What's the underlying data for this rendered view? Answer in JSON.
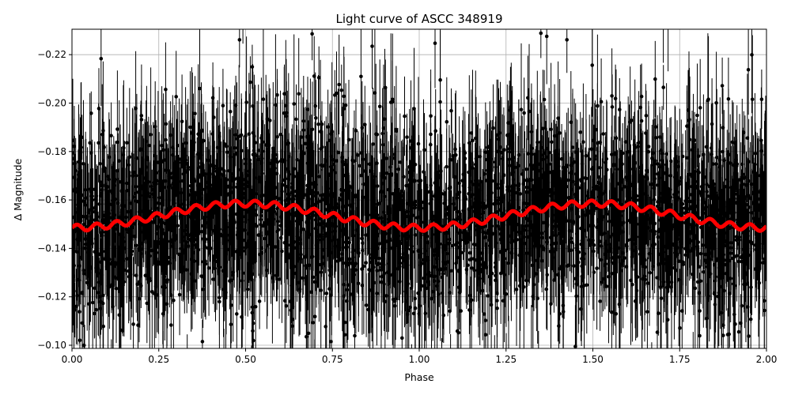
{
  "chart_data": {
    "type": "scatter",
    "title": "Light curve of ASCC 348919",
    "xlabel": "Phase",
    "ylabel": "Δ Magnitude",
    "xlim": [
      0.0,
      2.0
    ],
    "ylim": [
      -0.0987,
      -0.2305
    ],
    "y_inverted": true,
    "grid": true,
    "xticks": [
      "0.00",
      "0.25",
      "0.50",
      "0.75",
      "1.00",
      "1.25",
      "1.50",
      "1.75",
      "2.00"
    ],
    "yticks": [
      "-0.22",
      "-0.20",
      "-0.18",
      "-0.16",
      "-0.14",
      "-0.12",
      "-0.10"
    ],
    "series": [
      {
        "kind": "errorbar-points",
        "color": "#000000",
        "center": -0.1535,
        "scatter_sigma": 0.018,
        "error_range": [
          0.008,
          0.03
        ]
      },
      {
        "kind": "fit-line",
        "color": "#ff0000",
        "mean": -0.1535,
        "amplitude": 0.005,
        "peak_phase": 0.5,
        "period": 1.0,
        "ripple_amplitude": 0.0013,
        "ripple_period": 0.057
      }
    ]
  }
}
